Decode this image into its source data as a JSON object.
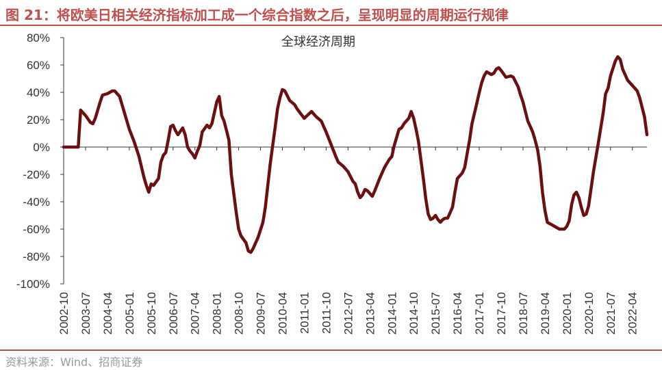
{
  "figure": {
    "title": "图 21：将欧美日相关经济指标加工成一个综合指数之后，呈现明显的周期运行规律",
    "source": "资料来源：Wind、招商证券"
  },
  "colors": {
    "accent": "#c0504d",
    "line": "#6b0f0f",
    "text": "#333333"
  },
  "chart_data": {
    "type": "line",
    "title": "全球经济周期",
    "xlabel": "",
    "ylabel": "",
    "ylim": [
      -100,
      80
    ],
    "yticks": [
      80,
      60,
      40,
      20,
      0,
      -20,
      -40,
      -60,
      -80,
      -100
    ],
    "ytick_labels": [
      "80%",
      "60%",
      "40%",
      "20%",
      "0%",
      "-20%",
      "-40%",
      "-60%",
      "-80%",
      "-100%"
    ],
    "xtick_labels": [
      "2002-10",
      "2003-07",
      "2004-04",
      "2005-01",
      "2005-10",
      "2006-07",
      "2007-04",
      "2008-01",
      "2008-10",
      "2009-07",
      "2010-04",
      "2011-01",
      "2011-10",
      "2012-07",
      "2013-04",
      "2014-01",
      "2014-10",
      "2015-07",
      "2016-04",
      "2017-01",
      "2017-10",
      "2018-07",
      "2019-04",
      "2020-01",
      "2020-10",
      "2021-07",
      "2022-04"
    ],
    "grid": false,
    "series": [
      {
        "points": [
          [
            "2002-10",
            0
          ],
          [
            "2003-04",
            0
          ],
          [
            "2003-05",
            27
          ],
          [
            "2003-07",
            23
          ],
          [
            "2003-09",
            18
          ],
          [
            "2003-10",
            17
          ],
          [
            "2003-11",
            21
          ],
          [
            "2004-01",
            33
          ],
          [
            "2004-02",
            38
          ],
          [
            "2004-04",
            39
          ],
          [
            "2004-06",
            41
          ],
          [
            "2004-07",
            41
          ],
          [
            "2004-08",
            39
          ],
          [
            "2004-09",
            37
          ],
          [
            "2004-11",
            25
          ],
          [
            "2005-01",
            13
          ],
          [
            "2005-03",
            4
          ],
          [
            "2005-05",
            -7
          ],
          [
            "2005-07",
            -22
          ],
          [
            "2005-08",
            -28
          ],
          [
            "2005-09",
            -33
          ],
          [
            "2005-10",
            -27
          ],
          [
            "2005-11",
            -28
          ],
          [
            "2006-01",
            -23
          ],
          [
            "2006-02",
            -11
          ],
          [
            "2006-03",
            -6
          ],
          [
            "2006-04",
            -4
          ],
          [
            "2006-05",
            5
          ],
          [
            "2006-06",
            15
          ],
          [
            "2006-07",
            16
          ],
          [
            "2006-08",
            12
          ],
          [
            "2006-09",
            9
          ],
          [
            "2006-11",
            14
          ],
          [
            "2006-12",
            9
          ],
          [
            "2007-01",
            0
          ],
          [
            "2007-02",
            -3
          ],
          [
            "2007-03",
            -5
          ],
          [
            "2007-04",
            -8
          ],
          [
            "2007-05",
            -3
          ],
          [
            "2007-06",
            1
          ],
          [
            "2007-07",
            11
          ],
          [
            "2007-09",
            16
          ],
          [
            "2007-10",
            14
          ],
          [
            "2007-11",
            17
          ],
          [
            "2008-01",
            33
          ],
          [
            "2008-02",
            37
          ],
          [
            "2008-03",
            23
          ],
          [
            "2008-04",
            19
          ],
          [
            "2008-05",
            12
          ],
          [
            "2008-06",
            5
          ],
          [
            "2008-07",
            -20
          ],
          [
            "2008-09",
            -48
          ],
          [
            "2008-10",
            -60
          ],
          [
            "2008-11",
            -65
          ],
          [
            "2009-01",
            -70
          ],
          [
            "2009-02",
            -76
          ],
          [
            "2009-03",
            -77
          ],
          [
            "2009-04",
            -74
          ],
          [
            "2009-06",
            -66
          ],
          [
            "2009-08",
            -55
          ],
          [
            "2009-09",
            -44
          ],
          [
            "2009-11",
            -12
          ],
          [
            "2010-01",
            14
          ],
          [
            "2010-02",
            28
          ],
          [
            "2010-03",
            36
          ],
          [
            "2010-04",
            42
          ],
          [
            "2010-05",
            41
          ],
          [
            "2010-07",
            34
          ],
          [
            "2010-09",
            31
          ],
          [
            "2010-10",
            28
          ],
          [
            "2011-01",
            21
          ],
          [
            "2011-04",
            26
          ],
          [
            "2011-05",
            24
          ],
          [
            "2011-06",
            22
          ],
          [
            "2011-08",
            19
          ],
          [
            "2011-10",
            11
          ],
          [
            "2011-12",
            2
          ],
          [
            "2012-02",
            -7
          ],
          [
            "2012-03",
            -11
          ],
          [
            "2012-05",
            -14
          ],
          [
            "2012-07",
            -18
          ],
          [
            "2012-09",
            -25
          ],
          [
            "2012-10",
            -27
          ],
          [
            "2012-11",
            -33
          ],
          [
            "2012-12",
            -37
          ],
          [
            "2013-01",
            -35
          ],
          [
            "2013-02",
            -31
          ],
          [
            "2013-03",
            -32
          ],
          [
            "2013-04",
            -34
          ],
          [
            "2013-05",
            -36
          ],
          [
            "2013-06",
            -32
          ],
          [
            "2013-08",
            -23
          ],
          [
            "2013-10",
            -15
          ],
          [
            "2013-12",
            -9
          ],
          [
            "2014-01",
            -7
          ],
          [
            "2014-02",
            1
          ],
          [
            "2014-03",
            7
          ],
          [
            "2014-04",
            13
          ],
          [
            "2014-05",
            14
          ],
          [
            "2014-06",
            17
          ],
          [
            "2014-07",
            19
          ],
          [
            "2014-08",
            21
          ],
          [
            "2014-09",
            26
          ],
          [
            "2014-10",
            21
          ],
          [
            "2014-11",
            13
          ],
          [
            "2014-12",
            4
          ],
          [
            "2015-02",
            -23
          ],
          [
            "2015-03",
            -38
          ],
          [
            "2015-04",
            -49
          ],
          [
            "2015-05",
            -53
          ],
          [
            "2015-06",
            -52
          ],
          [
            "2015-07",
            -50
          ],
          [
            "2015-08",
            -53
          ],
          [
            "2015-09",
            -55
          ],
          [
            "2015-10",
            -53
          ],
          [
            "2015-11",
            -52
          ],
          [
            "2015-12",
            -52
          ],
          [
            "2016-02",
            -44
          ],
          [
            "2016-03",
            -33
          ],
          [
            "2016-04",
            -23
          ],
          [
            "2016-06",
            -19
          ],
          [
            "2016-07",
            -15
          ],
          [
            "2016-08",
            -5
          ],
          [
            "2016-09",
            5
          ],
          [
            "2016-10",
            17
          ],
          [
            "2016-12",
            32
          ],
          [
            "2017-01",
            40
          ],
          [
            "2017-02",
            47
          ],
          [
            "2017-03",
            52
          ],
          [
            "2017-04",
            55
          ],
          [
            "2017-06",
            53
          ],
          [
            "2017-07",
            54
          ],
          [
            "2017-08",
            57
          ],
          [
            "2017-09",
            58
          ],
          [
            "2017-10",
            56
          ],
          [
            "2017-12",
            51
          ],
          [
            "2018-02",
            52
          ],
          [
            "2018-03",
            51
          ],
          [
            "2018-05",
            44
          ],
          [
            "2018-06",
            38
          ],
          [
            "2018-07",
            33
          ],
          [
            "2018-09",
            19
          ],
          [
            "2018-10",
            15
          ],
          [
            "2018-11",
            11
          ],
          [
            "2018-12",
            5
          ],
          [
            "2019-01",
            -2
          ],
          [
            "2019-02",
            -14
          ],
          [
            "2019-03",
            -33
          ],
          [
            "2019-04",
            -46
          ],
          [
            "2019-05",
            -55
          ],
          [
            "2019-06",
            -56
          ],
          [
            "2019-07",
            -57
          ],
          [
            "2019-09",
            -59
          ],
          [
            "2019-10",
            -60
          ],
          [
            "2019-12",
            -60
          ],
          [
            "2020-01",
            -58
          ],
          [
            "2020-02",
            -54
          ],
          [
            "2020-03",
            -42
          ],
          [
            "2020-04",
            -35
          ],
          [
            "2020-05",
            -33
          ],
          [
            "2020-06",
            -37
          ],
          [
            "2020-07",
            -44
          ],
          [
            "2020-08",
            -50
          ],
          [
            "2020-09",
            -49
          ],
          [
            "2020-10",
            -43
          ],
          [
            "2020-12",
            -18
          ],
          [
            "2021-02",
            3
          ],
          [
            "2021-04",
            25
          ],
          [
            "2021-05",
            39
          ],
          [
            "2021-06",
            43
          ],
          [
            "2021-07",
            52
          ],
          [
            "2021-09",
            63
          ],
          [
            "2021-10",
            66
          ],
          [
            "2021-11",
            64
          ],
          [
            "2021-12",
            57
          ],
          [
            "2022-02",
            49
          ],
          [
            "2022-03",
            47
          ],
          [
            "2022-05",
            43
          ],
          [
            "2022-06",
            41
          ],
          [
            "2022-07",
            36
          ],
          [
            "2022-09",
            22
          ],
          [
            "2022-10",
            9
          ]
        ]
      }
    ]
  }
}
